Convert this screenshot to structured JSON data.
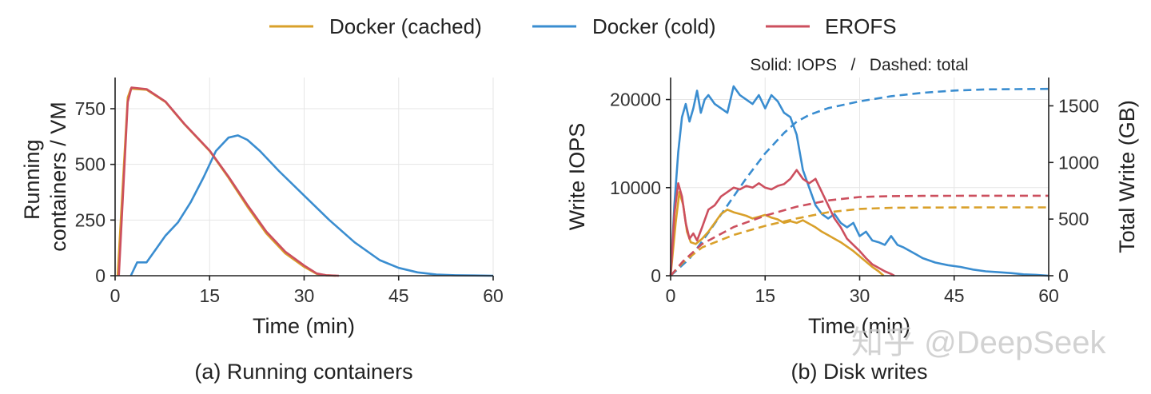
{
  "legend": [
    {
      "name": "Docker (cached)",
      "color": "#d9a02a"
    },
    {
      "name": "Docker (cold)",
      "color": "#3a8dd0"
    },
    {
      "name": "EROFS",
      "color": "#cc4f5e"
    }
  ],
  "watermark": "知乎 @DeepSeek",
  "chart_data": [
    {
      "type": "line",
      "caption": "(a) Running containers",
      "xlabel": "Time (min)",
      "ylabel": "Running containers / VM",
      "xlim": [
        0,
        60
      ],
      "ylim": [
        0,
        890
      ],
      "xticks": [
        0,
        15,
        30,
        45,
        60
      ],
      "yticks": [
        0,
        250,
        500,
        750
      ],
      "grid": true,
      "series": [
        {
          "name": "Docker (cached)",
          "color": "#d9a02a",
          "x": [
            0.4,
            2.0,
            2.5,
            5.0,
            8.0,
            11.0,
            15.0,
            18.0,
            21.0,
            24.0,
            27.0,
            30.0,
            32.0,
            33.5,
            35.0
          ],
          "y": [
            0,
            800,
            840,
            835,
            780,
            680,
            560,
            440,
            310,
            190,
            100,
            40,
            8,
            2,
            0
          ]
        },
        {
          "name": "Docker (cold)",
          "color": "#3a8dd0",
          "x": [
            2.5,
            3.5,
            5.0,
            6.5,
            8.0,
            10.0,
            12.0,
            14.0,
            16.0,
            18.0,
            19.5,
            21.0,
            23.0,
            26.0,
            30.0,
            34.0,
            38.0,
            42.0,
            45.0,
            48.0,
            51.0,
            54.0,
            57.0,
            60.0
          ],
          "y": [
            0,
            60,
            60,
            120,
            180,
            240,
            330,
            440,
            560,
            620,
            630,
            610,
            560,
            470,
            360,
            250,
            150,
            70,
            35,
            15,
            5,
            2,
            1,
            0
          ]
        },
        {
          "name": "EROFS",
          "color": "#cc4f5e",
          "x": [
            0.6,
            2.0,
            2.6,
            5.0,
            8.0,
            11.0,
            15.0,
            18.0,
            21.0,
            24.0,
            27.0,
            30.0,
            32.0,
            33.5,
            35.5
          ],
          "y": [
            0,
            780,
            845,
            838,
            782,
            682,
            562,
            445,
            318,
            198,
            108,
            46,
            10,
            2,
            0
          ]
        }
      ]
    },
    {
      "type": "line",
      "caption": "(b) Disk writes",
      "note": "Solid: IOPS   /   Dashed: total",
      "xlabel": "Time (min)",
      "ylabel": "Write IOPS",
      "y2label": "Total Write (GB)",
      "xlim": [
        0,
        60
      ],
      "ylim": [
        0,
        22500
      ],
      "y2lim": [
        0,
        1750
      ],
      "xticks": [
        0,
        15,
        30,
        45,
        60
      ],
      "yticks": [
        0,
        10000,
        20000
      ],
      "y2ticks": [
        0,
        500,
        1000,
        1500
      ],
      "grid": true,
      "series": [
        {
          "name": "Docker (cold)",
          "metric": "IOPS",
          "color": "#3a8dd0",
          "x": [
            0,
            0.6,
            1.2,
            1.8,
            2.4,
            3.0,
            3.6,
            4.2,
            4.8,
            5.4,
            6.0,
            7.0,
            8.0,
            9.0,
            10.0,
            11.0,
            12.0,
            13.0,
            14.0,
            15.0,
            16.0,
            17.0,
            18.0,
            19.0,
            20.0,
            21.0,
            22.0,
            23.0,
            24.0,
            25.0,
            26.0,
            27.0,
            28.0,
            29.0,
            30.0,
            31.0,
            32.0,
            33.0,
            34.0,
            35.0,
            36.0,
            37.0,
            38.0,
            39.0,
            40.0,
            42.0,
            44.0,
            46.0,
            48.0,
            50.0,
            52.0,
            54.0,
            56.0,
            58.0,
            60.0
          ],
          "y": [
            0,
            8000,
            14000,
            18000,
            19500,
            17500,
            19000,
            21000,
            18500,
            20000,
            20500,
            19500,
            19000,
            18500,
            21500,
            20500,
            20000,
            19500,
            20500,
            19000,
            20500,
            19800,
            18500,
            18000,
            16000,
            12000,
            10000,
            8000,
            7000,
            6500,
            7000,
            6000,
            5500,
            6000,
            4500,
            5000,
            4000,
            3800,
            3500,
            4500,
            3500,
            3200,
            2800,
            2400,
            2000,
            1500,
            1200,
            1000,
            700,
            500,
            400,
            300,
            150,
            100,
            0
          ]
        },
        {
          "name": "Docker (cold)",
          "metric": "total",
          "color": "#3a8dd0",
          "x": [
            0,
            3,
            6,
            9,
            12,
            15,
            18,
            20,
            22,
            25,
            30,
            35,
            40,
            45,
            50,
            55,
            60
          ],
          "y": [
            0,
            150,
            380,
            620,
            860,
            1080,
            1260,
            1360,
            1420,
            1480,
            1540,
            1585,
            1615,
            1635,
            1645,
            1648,
            1650
          ]
        },
        {
          "name": "Docker (cached)",
          "metric": "IOPS",
          "color": "#d9a02a",
          "x": [
            0,
            0.8,
            1.4,
            2.0,
            2.6,
            3.2,
            4.0,
            5.0,
            6.0,
            7.0,
            8.0,
            9.0,
            10.0,
            11.0,
            12.0,
            13.0,
            14.0,
            15.0,
            16.0,
            17.0,
            18.0,
            19.0,
            20.0,
            21.0,
            22.0,
            23.0,
            24.0,
            25.0,
            26.0,
            27.0,
            28.0,
            29.0,
            30.0,
            31.0,
            32.0,
            33.0,
            33.8
          ],
          "y": [
            0,
            6000,
            9500,
            8000,
            5000,
            3800,
            3600,
            4200,
            5000,
            6000,
            7000,
            7500,
            7200,
            7000,
            6800,
            6500,
            6700,
            6900,
            6600,
            6400,
            6000,
            6200,
            6000,
            6300,
            5900,
            5500,
            5000,
            4600,
            4200,
            3800,
            3300,
            2800,
            2200,
            1600,
            1000,
            500,
            0
          ]
        },
        {
          "name": "Docker (cached)",
          "metric": "total",
          "color": "#d9a02a",
          "x": [
            0,
            2,
            5,
            10,
            15,
            20,
            25,
            30,
            35,
            40,
            50,
            60
          ],
          "y": [
            0,
            120,
            250,
            360,
            440,
            505,
            560,
            590,
            600,
            602,
            603,
            603
          ]
        },
        {
          "name": "EROFS",
          "metric": "IOPS",
          "color": "#cc4f5e",
          "x": [
            0,
            0.6,
            1.2,
            1.8,
            2.4,
            3.0,
            3.6,
            4.2,
            5.0,
            6.0,
            7.0,
            8.0,
            9.0,
            10.0,
            11.0,
            12.0,
            13.0,
            14.0,
            15.0,
            16.0,
            17.0,
            18.0,
            19.0,
            20.0,
            21.0,
            22.0,
            23.0,
            24.0,
            25.0,
            26.0,
            27.0,
            28.0,
            29.0,
            30.0,
            31.0,
            32.0,
            33.0,
            34.0,
            35.0,
            35.5
          ],
          "y": [
            0,
            7000,
            10500,
            9000,
            6000,
            4200,
            4800,
            4000,
            5500,
            7500,
            8000,
            9000,
            9500,
            10000,
            9800,
            10200,
            10000,
            10500,
            10000,
            9800,
            10200,
            10400,
            11000,
            12000,
            11000,
            10500,
            11000,
            9500,
            8000,
            6500,
            5500,
            4200,
            3500,
            2800,
            2000,
            1300,
            900,
            500,
            200,
            0
          ]
        },
        {
          "name": "EROFS",
          "metric": "total",
          "color": "#cc4f5e",
          "x": [
            0,
            2,
            5,
            10,
            15,
            20,
            25,
            30,
            35,
            40,
            50,
            60
          ],
          "y": [
            0,
            130,
            280,
            430,
            530,
            610,
            665,
            695,
            703,
            705,
            706,
            706
          ]
        }
      ]
    }
  ]
}
